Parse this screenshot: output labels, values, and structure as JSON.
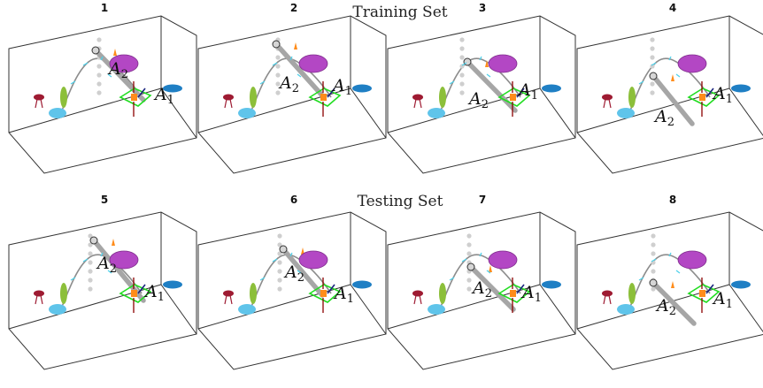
{
  "sections": {
    "train": "Training Set",
    "test": "Testing Set"
  },
  "labels": {
    "a1_main": "A",
    "a1_sub": "1",
    "a2_main": "A",
    "a2_sub": "2"
  },
  "colors": {
    "box": "#333333",
    "rod": "#a6a6a6",
    "dots": "#cfcfcf",
    "trajectory": "#8c8c8c",
    "purple_ellipse": "#b347c4",
    "blue_ellipse": "#1f7fc4",
    "cyan_ellipse": "#5fc4ea",
    "green_ellipse": "#8cbf3a",
    "red_marker": "#9e1b32",
    "green_frame": "#22dd22",
    "orange_marker": "#ff8c1a",
    "dark_red_arrow": "#8b0000",
    "navy_arrow": "#1a237e"
  },
  "panels": [
    {
      "num": "1",
      "section": "train"
    },
    {
      "num": "2",
      "section": "train"
    },
    {
      "num": "3",
      "section": "train"
    },
    {
      "num": "4",
      "section": "train"
    },
    {
      "num": "5",
      "section": "test"
    },
    {
      "num": "6",
      "section": "test"
    },
    {
      "num": "7",
      "section": "test"
    },
    {
      "num": "8",
      "section": "test"
    }
  ]
}
